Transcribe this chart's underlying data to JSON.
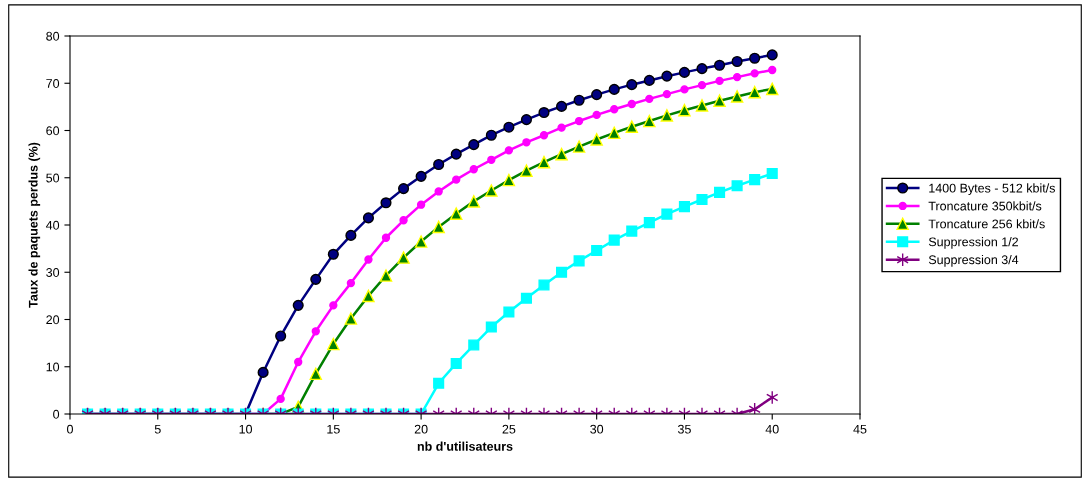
{
  "chart_data": {
    "type": "line",
    "xlabel": "nb d'utilisateurs",
    "ylabel": "Taux de paquets perdus (%)",
    "x": [
      1,
      2,
      3,
      4,
      5,
      6,
      7,
      8,
      9,
      10,
      11,
      12,
      13,
      14,
      15,
      16,
      17,
      18,
      19,
      20,
      21,
      22,
      23,
      24,
      25,
      26,
      27,
      28,
      29,
      30,
      31,
      32,
      33,
      34,
      35,
      36,
      37,
      38,
      39,
      40
    ],
    "xlim": [
      0,
      45
    ],
    "xticks": [
      0,
      5,
      10,
      15,
      20,
      25,
      30,
      35,
      40,
      45
    ],
    "ylim": [
      0,
      80
    ],
    "yticks": [
      0,
      10,
      20,
      30,
      40,
      50,
      60,
      70,
      80
    ],
    "grid": false,
    "legend": "right",
    "line_style": "solid",
    "series": [
      {
        "name": "1400 Bytes - 512 kbit/s",
        "color": "#000080",
        "marker": "circle",
        "values": [
          0,
          0,
          0,
          0,
          0,
          0,
          0,
          0,
          0,
          0,
          8.8,
          16.5,
          23,
          28.5,
          33.8,
          37.8,
          41.5,
          44.7,
          47.7,
          50.3,
          52.8,
          55.0,
          57.0,
          59.0,
          60.7,
          62.3,
          63.8,
          65.1,
          66.4,
          67.6,
          68.7,
          69.7,
          70.6,
          71.5,
          72.3,
          73.1,
          73.8,
          74.6,
          75.3,
          76.0
        ]
      },
      {
        "name": "Troncature 350kbit/s",
        "color": "#ff00ff",
        "marker": "circle",
        "values": [
          null,
          null,
          null,
          null,
          null,
          null,
          null,
          null,
          null,
          0,
          0,
          3.2,
          11,
          17.5,
          23,
          27.7,
          32.7,
          37.3,
          41,
          44.3,
          47.1,
          49.6,
          51.8,
          53.8,
          55.8,
          57.5,
          59.0,
          60.6,
          62.0,
          63.3,
          64.5,
          65.6,
          66.7,
          67.7,
          68.7,
          69.6,
          70.5,
          71.3,
          72.1,
          72.8
        ]
      },
      {
        "name": "Troncature 256 kbit/s",
        "color": "#008000",
        "marker": "triangle",
        "values": [
          null,
          null,
          null,
          null,
          null,
          null,
          null,
          null,
          null,
          null,
          0,
          0,
          1.5,
          8.5,
          14.8,
          20.2,
          25,
          29.3,
          33.1,
          36.5,
          39.6,
          42.4,
          45,
          47.3,
          49.5,
          51.5,
          53.3,
          55,
          56.6,
          58.1,
          59.5,
          60.8,
          62,
          63.2,
          64.3,
          65.3,
          66.3,
          67.2,
          68.1,
          68.8
        ]
      },
      {
        "name": "Suppression 1/2",
        "color": "#00ffff",
        "marker": "square",
        "values": [
          0,
          0,
          0,
          0,
          0,
          0,
          0,
          0,
          0,
          0,
          0,
          0,
          0,
          0,
          0,
          0,
          0,
          0,
          0,
          0,
          6.5,
          10.7,
          14.6,
          18.4,
          21.6,
          24.5,
          27.3,
          30,
          32.4,
          34.6,
          36.8,
          38.7,
          40.5,
          42.3,
          43.9,
          45.4,
          46.9,
          48.3,
          49.6,
          50.9
        ]
      },
      {
        "name": "Suppression 3/4",
        "color": "#800080",
        "marker": "cross",
        "values": [
          0,
          0,
          0,
          0,
          0,
          0,
          0,
          0,
          0,
          0,
          0,
          0,
          0,
          0,
          0,
          0,
          0,
          0,
          0,
          0,
          0,
          0,
          0,
          0,
          0,
          0,
          0,
          0,
          0,
          0,
          0,
          0,
          0,
          0,
          0,
          0,
          0,
          0,
          1.0,
          3.5
        ]
      }
    ]
  }
}
